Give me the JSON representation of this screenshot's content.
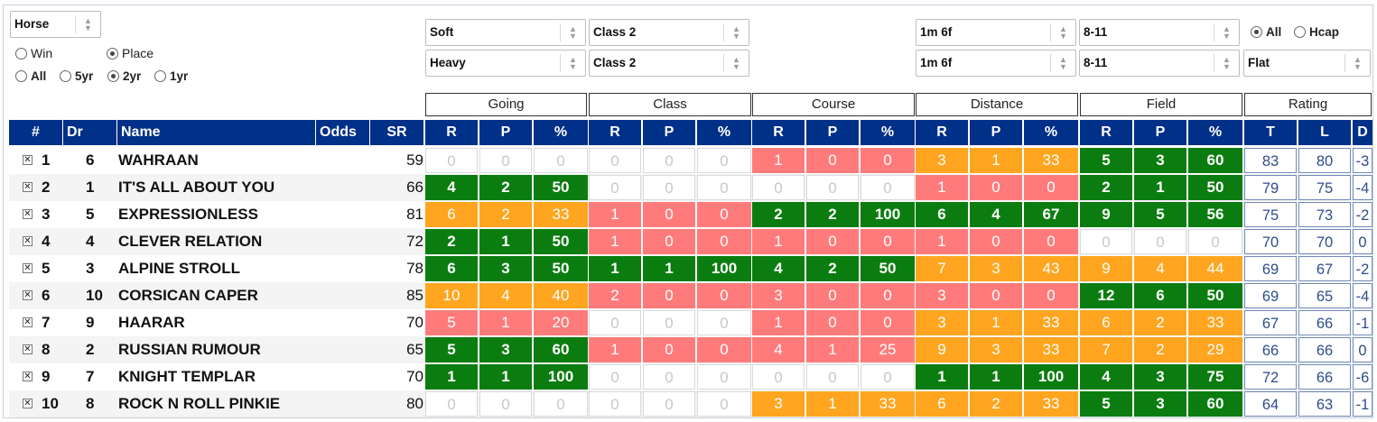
{
  "controls": {
    "horse_select": "Horse",
    "bet_type": [
      {
        "label": "Win",
        "checked": false
      },
      {
        "label": "Place",
        "checked": true
      }
    ],
    "period": [
      {
        "label": "All",
        "checked": false
      },
      {
        "label": "5yr",
        "checked": false
      },
      {
        "label": "2yr",
        "checked": true
      },
      {
        "label": "1yr",
        "checked": false
      }
    ],
    "filters_top": {
      "going": "Soft",
      "class": "Class 2",
      "course": "1m 6f",
      "field": "8-11"
    },
    "filters_bottom": {
      "going": "Heavy",
      "class": "Class 2",
      "course": "1m 6f",
      "field": "8-11",
      "race_type": "Flat"
    },
    "race_filter": [
      {
        "label": "All",
        "checked": true
      },
      {
        "label": "Hcap",
        "checked": false
      }
    ]
  },
  "groups": [
    "Going",
    "Class",
    "Course",
    "Distance",
    "Field",
    "Rating"
  ],
  "columns": {
    "num": "#",
    "dr": "Dr",
    "name": "Name",
    "odds": "Odds",
    "sr": "SR",
    "rpp": [
      "R",
      "P",
      "%"
    ],
    "rating": [
      "T",
      "L",
      "D"
    ]
  },
  "colors": {
    "header": "#003087",
    "green": "#0b7d10",
    "orange": "#ffa51f",
    "red": "#ff7b7b"
  },
  "rows": [
    {
      "num": "1",
      "dr": "6",
      "name": "WAHRAAN",
      "odds": "",
      "sr": "59",
      "stats": [
        [
          "0",
          "0",
          "0",
          "none"
        ],
        [
          "0",
          "0",
          "0",
          "none"
        ],
        [
          "1",
          "0",
          "0",
          "red"
        ],
        [
          "3",
          "1",
          "33",
          "org"
        ],
        [
          "5",
          "3",
          "60",
          "grn"
        ]
      ],
      "rating": [
        "83",
        "80",
        "-3"
      ]
    },
    {
      "num": "2",
      "dr": "1",
      "name": "IT'S ALL ABOUT YOU",
      "odds": "",
      "sr": "66",
      "stats": [
        [
          "4",
          "2",
          "50",
          "grn"
        ],
        [
          "0",
          "0",
          "0",
          "none"
        ],
        [
          "0",
          "0",
          "0",
          "none"
        ],
        [
          "1",
          "0",
          "0",
          "red"
        ],
        [
          "2",
          "1",
          "50",
          "grn"
        ]
      ],
      "rating": [
        "79",
        "75",
        "-4"
      ]
    },
    {
      "num": "3",
      "dr": "5",
      "name": "EXPRESSIONLESS",
      "odds": "",
      "sr": "81",
      "stats": [
        [
          "6",
          "2",
          "33",
          "org"
        ],
        [
          "1",
          "0",
          "0",
          "red"
        ],
        [
          "2",
          "2",
          "100",
          "grn"
        ],
        [
          "6",
          "4",
          "67",
          "grn"
        ],
        [
          "9",
          "5",
          "56",
          "grn"
        ]
      ],
      "rating": [
        "75",
        "73",
        "-2"
      ]
    },
    {
      "num": "4",
      "dr": "4",
      "name": "CLEVER RELATION",
      "odds": "",
      "sr": "72",
      "stats": [
        [
          "2",
          "1",
          "50",
          "grn"
        ],
        [
          "1",
          "0",
          "0",
          "red"
        ],
        [
          "1",
          "0",
          "0",
          "red"
        ],
        [
          "1",
          "0",
          "0",
          "red"
        ],
        [
          "0",
          "0",
          "0",
          "none"
        ]
      ],
      "rating": [
        "70",
        "70",
        "0"
      ]
    },
    {
      "num": "5",
      "dr": "3",
      "name": "ALPINE STROLL",
      "odds": "",
      "sr": "78",
      "stats": [
        [
          "6",
          "3",
          "50",
          "grn"
        ],
        [
          "1",
          "1",
          "100",
          "grn"
        ],
        [
          "4",
          "2",
          "50",
          "grn"
        ],
        [
          "7",
          "3",
          "43",
          "org"
        ],
        [
          "9",
          "4",
          "44",
          "org"
        ]
      ],
      "rating": [
        "69",
        "67",
        "-2"
      ]
    },
    {
      "num": "6",
      "dr": "10",
      "name": "CORSICAN CAPER",
      "odds": "",
      "sr": "85",
      "stats": [
        [
          "10",
          "4",
          "40",
          "org"
        ],
        [
          "2",
          "0",
          "0",
          "red"
        ],
        [
          "3",
          "0",
          "0",
          "red"
        ],
        [
          "3",
          "0",
          "0",
          "red"
        ],
        [
          "12",
          "6",
          "50",
          "grn"
        ]
      ],
      "rating": [
        "69",
        "65",
        "-4"
      ]
    },
    {
      "num": "7",
      "dr": "9",
      "name": "HAARAR",
      "odds": "",
      "sr": "70",
      "stats": [
        [
          "5",
          "1",
          "20",
          "red"
        ],
        [
          "0",
          "0",
          "0",
          "none"
        ],
        [
          "1",
          "0",
          "0",
          "red"
        ],
        [
          "3",
          "1",
          "33",
          "org"
        ],
        [
          "6",
          "2",
          "33",
          "org"
        ]
      ],
      "rating": [
        "67",
        "66",
        "-1"
      ]
    },
    {
      "num": "8",
      "dr": "2",
      "name": "RUSSIAN RUMOUR",
      "odds": "",
      "sr": "65",
      "stats": [
        [
          "5",
          "3",
          "60",
          "grn"
        ],
        [
          "1",
          "0",
          "0",
          "red"
        ],
        [
          "4",
          "1",
          "25",
          "red"
        ],
        [
          "9",
          "3",
          "33",
          "org"
        ],
        [
          "7",
          "2",
          "29",
          "org"
        ]
      ],
      "rating": [
        "66",
        "66",
        "0"
      ]
    },
    {
      "num": "9",
      "dr": "7",
      "name": "KNIGHT TEMPLAR",
      "odds": "",
      "sr": "70",
      "stats": [
        [
          "1",
          "1",
          "100",
          "grn"
        ],
        [
          "0",
          "0",
          "0",
          "none"
        ],
        [
          "0",
          "0",
          "0",
          "none"
        ],
        [
          "1",
          "1",
          "100",
          "grn"
        ],
        [
          "4",
          "3",
          "75",
          "grn"
        ]
      ],
      "rating": [
        "72",
        "66",
        "-6"
      ]
    },
    {
      "num": "10",
      "dr": "8",
      "name": "ROCK N ROLL PINKIE",
      "odds": "",
      "sr": "80",
      "stats": [
        [
          "0",
          "0",
          "0",
          "none"
        ],
        [
          "0",
          "0",
          "0",
          "none"
        ],
        [
          "3",
          "1",
          "33",
          "org"
        ],
        [
          "6",
          "2",
          "33",
          "org"
        ],
        [
          "5",
          "3",
          "60",
          "grn"
        ]
      ],
      "rating": [
        "64",
        "63",
        "-1"
      ]
    }
  ]
}
